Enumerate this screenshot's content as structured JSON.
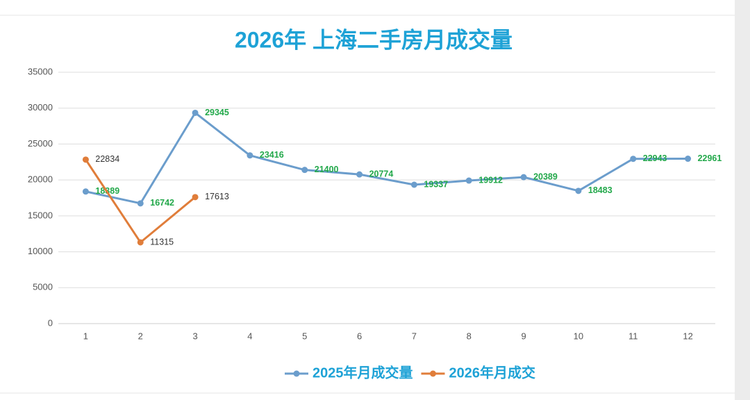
{
  "chart_data": {
    "type": "line",
    "title": "2026年 上海二手房月成交量",
    "categories": [
      "1",
      "2",
      "3",
      "4",
      "5",
      "6",
      "7",
      "8",
      "9",
      "10",
      "11",
      "12"
    ],
    "series": [
      {
        "name": "2025年月成交量",
        "color": "#6b9dcc",
        "label_color": "#22a84a",
        "values": [
          18389,
          16742,
          29345,
          23416,
          21400,
          20774,
          19337,
          19912,
          20389,
          18483,
          22943,
          22961
        ]
      },
      {
        "name": "2026年月成交",
        "color": "#e07d3a",
        "label_color": "#333333",
        "values": [
          22834,
          11315,
          17613,
          null,
          null,
          null,
          null,
          null,
          null,
          null,
          null,
          null
        ]
      }
    ],
    "ylim": [
      0,
      35000
    ],
    "yticks": [
      0,
      5000,
      10000,
      15000,
      20000,
      25000,
      30000,
      35000
    ],
    "grid": true,
    "legend": "bottom"
  }
}
